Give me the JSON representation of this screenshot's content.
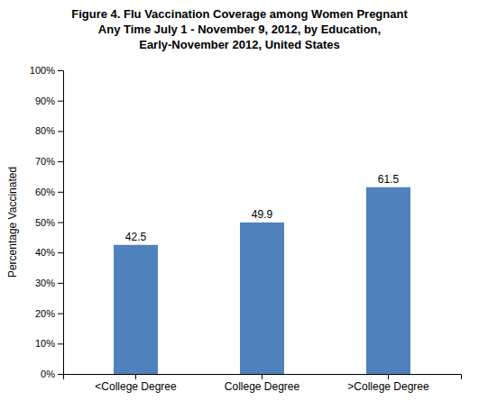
{
  "chart_data": {
    "type": "bar",
    "title": "Figure 4. Flu Vaccination Coverage among Women Pregnant\nAny Time July 1 - November 9, 2012, by Education,\nEarly-November 2012, United States",
    "categories": [
      "<College Degree",
      "College Degree",
      ">College Degree"
    ],
    "values": [
      42.5,
      49.9,
      61.5
    ],
    "color": "#4f81bd",
    "ylabel": "Percentage Vaccinated",
    "ylim": [
      0,
      100
    ],
    "yticks": [
      {
        "value": 0,
        "label": "0%"
      },
      {
        "value": 10,
        "label": "10%"
      },
      {
        "value": 20,
        "label": "20%"
      },
      {
        "value": 30,
        "label": "30%"
      },
      {
        "value": 40,
        "label": "40%"
      },
      {
        "value": 50,
        "label": "50%"
      },
      {
        "value": 60,
        "label": "60%"
      },
      {
        "value": 70,
        "label": "70%"
      },
      {
        "value": 80,
        "label": "80%"
      },
      {
        "value": 90,
        "label": "90%"
      },
      {
        "value": 100,
        "label": "100%"
      }
    ],
    "grid": false,
    "data_labels": true
  }
}
